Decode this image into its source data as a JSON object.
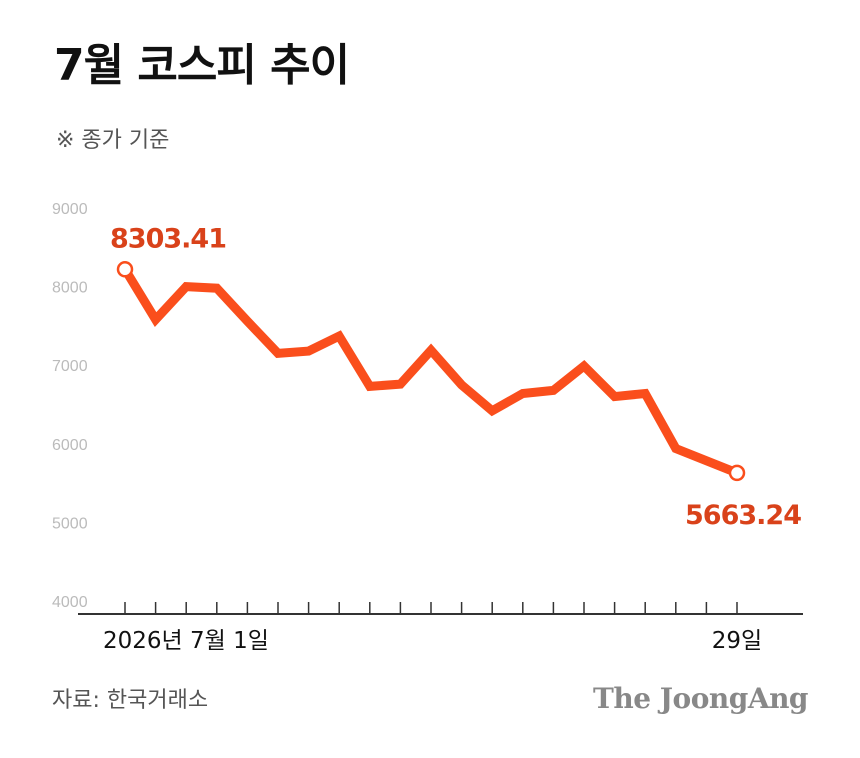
{
  "chart_data": {
    "type": "line",
    "title": "7월 코스피 추이",
    "subtitle": "※ 종가 기준",
    "source": "자료: 한국거래소",
    "brand": "The JoongAng",
    "ylim": [
      4000,
      9000
    ],
    "y_ticks": [
      "9000",
      "8000",
      "7000",
      "6000",
      "5000",
      "4000"
    ],
    "x_tick_count": 21,
    "x_label_start": "2026년 7월 1일",
    "x_label_end": "29일",
    "series": [
      {
        "values": [
          8220,
          7580,
          8000,
          7980,
          7560,
          7150,
          7180,
          7370,
          6730,
          6760,
          7190,
          6750,
          6420,
          6640,
          6680,
          6990,
          6600,
          6640,
          5940,
          5630
        ]
      }
    ],
    "x_index": [
      0,
      1,
      2,
      3,
      4,
      5,
      6,
      7,
      8,
      9,
      10,
      11,
      12,
      13,
      14,
      15,
      16,
      17,
      18,
      20
    ],
    "start_label": "8303.41",
    "end_label": "5663.24",
    "colors": {
      "line": "#fa4e1c",
      "marker_fill": "#ffffff",
      "label": "#d9421a",
      "axis": "#333333",
      "tick_text": "#bbbbbb",
      "title": "#111111",
      "muted": "#555555",
      "brand": "#888888"
    }
  }
}
